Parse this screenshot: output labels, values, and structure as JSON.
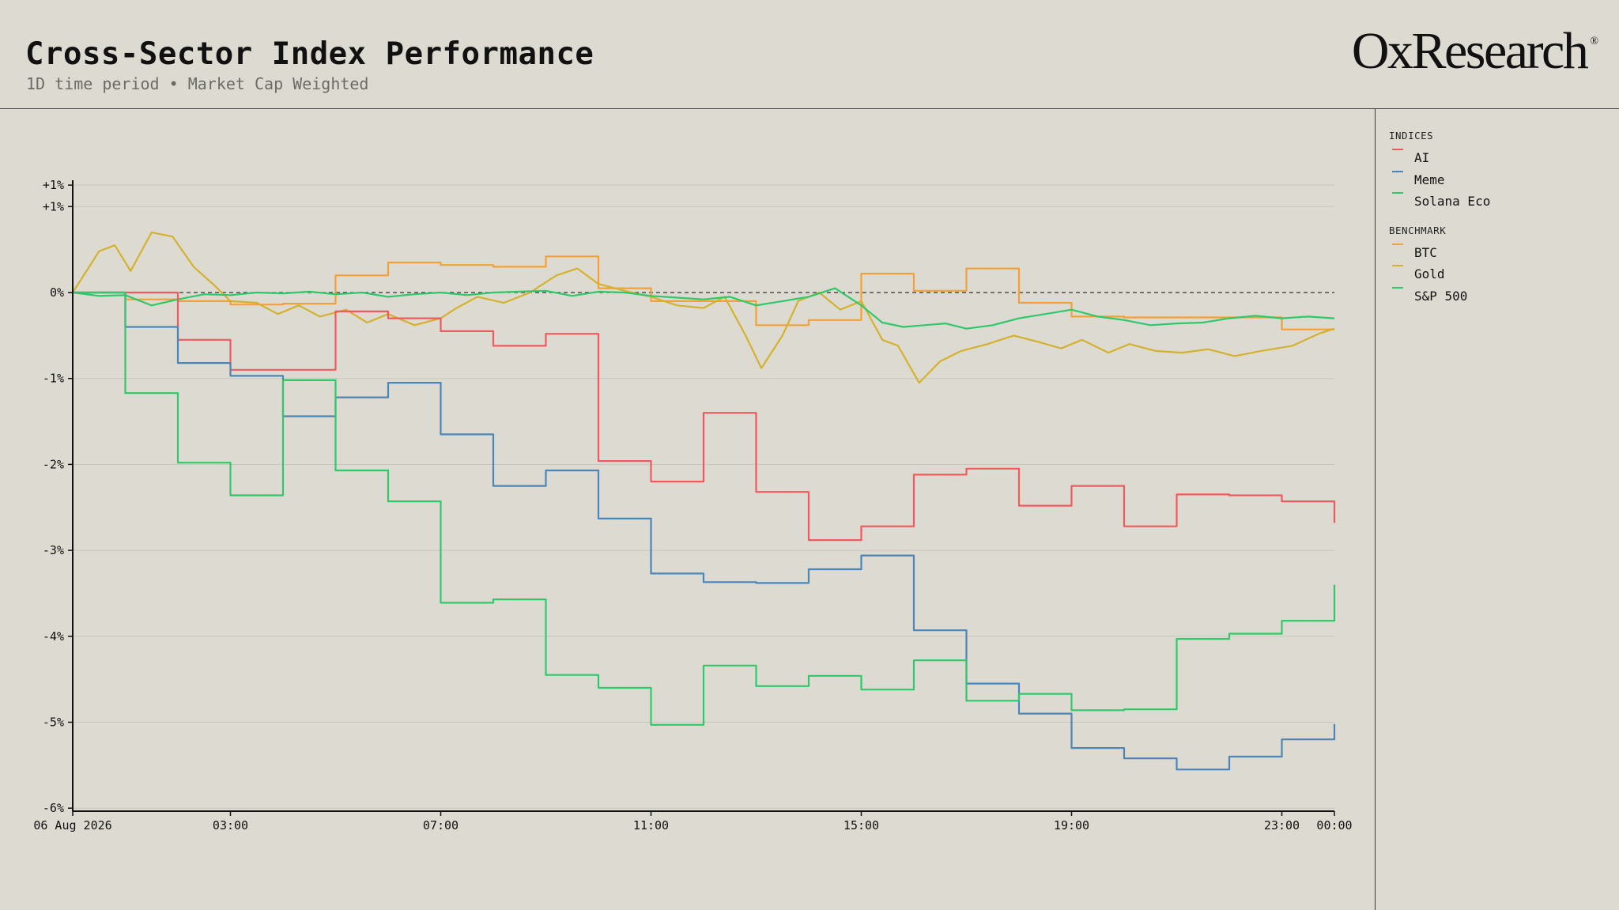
{
  "header": {
    "title": "Cross-Sector Index Performance",
    "subtitle": "1D time period • Market Cap Weighted",
    "logo": "OxResearch",
    "logo_mark": "®"
  },
  "legend": {
    "indices_heading": "INDICES",
    "benchmark_heading": "BENCHMARK",
    "indices": [
      {
        "name": "AI",
        "color": "#ef5a5f"
      },
      {
        "name": "Meme",
        "color": "#4a86b8"
      },
      {
        "name": "Solana Eco",
        "color": "#2fc86a"
      }
    ],
    "benchmarks": [
      {
        "name": "BTC",
        "color": "#f2a13a"
      },
      {
        "name": "Gold",
        "color": "#d4b22e"
      },
      {
        "name": "S&P 500",
        "color": "#2fc86a"
      }
    ]
  },
  "chart_data": {
    "type": "line",
    "title": "Cross-Sector Index Performance",
    "subtitle": "1D time period • Market Cap Weighted",
    "x_range_hours": [
      0,
      24
    ],
    "ylim": [
      -6,
      1.3
    ],
    "y_ticks": [
      {
        "value": 1.25,
        "label": "+1%"
      },
      {
        "value": 1.0,
        "label": "+1%"
      },
      {
        "value": 0,
        "label": "0%"
      },
      {
        "value": -1,
        "label": "-1%"
      },
      {
        "value": -2,
        "label": "-2%"
      },
      {
        "value": -3,
        "label": "-3%"
      },
      {
        "value": -4,
        "label": "-4%"
      },
      {
        "value": -5,
        "label": "-5%"
      },
      {
        "value": -6,
        "label": "-6%"
      }
    ],
    "x_ticks": [
      {
        "hour": 0,
        "label": "06 Aug 2026"
      },
      {
        "hour": 3,
        "label": "03:00"
      },
      {
        "hour": 7,
        "label": "07:00"
      },
      {
        "hour": 11,
        "label": "11:00"
      },
      {
        "hour": 15,
        "label": "15:00"
      },
      {
        "hour": 19,
        "label": "19:00"
      },
      {
        "hour": 23,
        "label": "23:00"
      },
      {
        "hour": 24,
        "label": "00:00"
      }
    ],
    "zero_line": true,
    "grid": true,
    "series": [
      {
        "name": "AI",
        "color": "#ef5a5f",
        "step": true,
        "points": [
          [
            0,
            0
          ],
          [
            1,
            0
          ],
          [
            2,
            -0.55
          ],
          [
            3,
            -0.9
          ],
          [
            4,
            -0.9
          ],
          [
            5,
            -0.22
          ],
          [
            6,
            -0.3
          ],
          [
            7,
            -0.45
          ],
          [
            8,
            -0.62
          ],
          [
            9,
            -0.48
          ],
          [
            10,
            -1.96
          ],
          [
            11,
            -2.2
          ],
          [
            12,
            -1.4
          ],
          [
            13,
            -2.32
          ],
          [
            14,
            -2.88
          ],
          [
            15,
            -2.72
          ],
          [
            16,
            -2.12
          ],
          [
            17,
            -2.05
          ],
          [
            18,
            -2.48
          ],
          [
            19,
            -2.25
          ],
          [
            20,
            -2.72
          ],
          [
            21,
            -2.35
          ],
          [
            22,
            -2.36
          ],
          [
            23,
            -2.43
          ],
          [
            24,
            -2.68
          ]
        ]
      },
      {
        "name": "Meme",
        "color": "#4a86b8",
        "step": true,
        "points": [
          [
            0,
            0
          ],
          [
            1,
            -0.4
          ],
          [
            2,
            -0.82
          ],
          [
            3,
            -0.97
          ],
          [
            4,
            -1.44
          ],
          [
            5,
            -1.22
          ],
          [
            6,
            -1.05
          ],
          [
            7,
            -1.65
          ],
          [
            8,
            -2.25
          ],
          [
            9,
            -2.07
          ],
          [
            10,
            -2.63
          ],
          [
            11,
            -3.27
          ],
          [
            12,
            -3.37
          ],
          [
            13,
            -3.38
          ],
          [
            14,
            -3.22
          ],
          [
            15,
            -3.06
          ],
          [
            16,
            -3.93
          ],
          [
            17,
            -4.55
          ],
          [
            18,
            -4.9
          ],
          [
            19,
            -5.3
          ],
          [
            20,
            -5.42
          ],
          [
            21,
            -5.55
          ],
          [
            22,
            -5.4
          ],
          [
            23,
            -5.2
          ],
          [
            24,
            -5.02
          ]
        ]
      },
      {
        "name": "Solana Eco",
        "color": "#2fc86a",
        "step": true,
        "points": [
          [
            0,
            0
          ],
          [
            1,
            -1.17
          ],
          [
            2,
            -1.98
          ],
          [
            3,
            -2.36
          ],
          [
            4,
            -1.02
          ],
          [
            5,
            -2.07
          ],
          [
            6,
            -2.43
          ],
          [
            7,
            -3.61
          ],
          [
            8,
            -3.57
          ],
          [
            9,
            -4.45
          ],
          [
            10,
            -4.6
          ],
          [
            11,
            -5.03
          ],
          [
            12,
            -4.34
          ],
          [
            13,
            -4.58
          ],
          [
            14,
            -4.46
          ],
          [
            15,
            -4.62
          ],
          [
            16,
            -4.28
          ],
          [
            17,
            -4.75
          ],
          [
            18,
            -4.67
          ],
          [
            19,
            -4.86
          ],
          [
            20,
            -4.85
          ],
          [
            21,
            -4.03
          ],
          [
            22,
            -3.97
          ],
          [
            23,
            -3.82
          ],
          [
            24,
            -3.4
          ]
        ]
      },
      {
        "name": "BTC",
        "color": "#f2a13a",
        "step": true,
        "points": [
          [
            0,
            0
          ],
          [
            1,
            -0.08
          ],
          [
            2,
            -0.1
          ],
          [
            3,
            -0.14
          ],
          [
            4,
            -0.13
          ],
          [
            5,
            0.2
          ],
          [
            6,
            0.35
          ],
          [
            7,
            0.32
          ],
          [
            8,
            0.3
          ],
          [
            9,
            0.42
          ],
          [
            10,
            0.05
          ],
          [
            11,
            -0.1
          ],
          [
            12,
            -0.1
          ],
          [
            13,
            -0.38
          ],
          [
            14,
            -0.32
          ],
          [
            15,
            0.22
          ],
          [
            16,
            0.02
          ],
          [
            17,
            0.28
          ],
          [
            18,
            -0.12
          ],
          [
            19,
            -0.28
          ],
          [
            20,
            -0.29
          ],
          [
            21,
            -0.29
          ],
          [
            22,
            -0.29
          ],
          [
            23,
            -0.43
          ],
          [
            24,
            -0.43
          ]
        ]
      },
      {
        "name": "Gold",
        "color": "#d4b22e",
        "step": false,
        "points": [
          [
            0,
            0
          ],
          [
            0.5,
            0.48
          ],
          [
            0.8,
            0.55
          ],
          [
            1.1,
            0.25
          ],
          [
            1.5,
            0.7
          ],
          [
            1.9,
            0.65
          ],
          [
            2.3,
            0.3
          ],
          [
            2.7,
            0.08
          ],
          [
            3,
            -0.1
          ],
          [
            3.5,
            -0.12
          ],
          [
            3.9,
            -0.25
          ],
          [
            4.3,
            -0.15
          ],
          [
            4.7,
            -0.28
          ],
          [
            5.2,
            -0.2
          ],
          [
            5.6,
            -0.35
          ],
          [
            6,
            -0.25
          ],
          [
            6.5,
            -0.38
          ],
          [
            7,
            -0.3
          ],
          [
            7.3,
            -0.18
          ],
          [
            7.7,
            -0.05
          ],
          [
            8.2,
            -0.12
          ],
          [
            8.7,
            0.0
          ],
          [
            9.2,
            0.2
          ],
          [
            9.6,
            0.28
          ],
          [
            10,
            0.1
          ],
          [
            10.5,
            0.02
          ],
          [
            11,
            -0.05
          ],
          [
            11.5,
            -0.15
          ],
          [
            12,
            -0.18
          ],
          [
            12.4,
            -0.05
          ],
          [
            12.8,
            -0.5
          ],
          [
            13.1,
            -0.88
          ],
          [
            13.5,
            -0.5
          ],
          [
            13.8,
            -0.1
          ],
          [
            14.2,
            0.0
          ],
          [
            14.6,
            -0.2
          ],
          [
            15,
            -0.1
          ],
          [
            15.4,
            -0.55
          ],
          [
            15.7,
            -0.62
          ],
          [
            16.1,
            -1.05
          ],
          [
            16.5,
            -0.8
          ],
          [
            16.9,
            -0.68
          ],
          [
            17.4,
            -0.6
          ],
          [
            17.9,
            -0.5
          ],
          [
            18.4,
            -0.58
          ],
          [
            18.8,
            -0.65
          ],
          [
            19.2,
            -0.55
          ],
          [
            19.7,
            -0.7
          ],
          [
            20.1,
            -0.6
          ],
          [
            20.6,
            -0.68
          ],
          [
            21.1,
            -0.7
          ],
          [
            21.6,
            -0.66
          ],
          [
            22.1,
            -0.74
          ],
          [
            22.6,
            -0.68
          ],
          [
            23.2,
            -0.62
          ],
          [
            23.7,
            -0.48
          ],
          [
            24,
            -0.42
          ]
        ]
      },
      {
        "name": "S&P 500",
        "color": "#2fc86a",
        "step": false,
        "points": [
          [
            0,
            0
          ],
          [
            0.5,
            -0.04
          ],
          [
            1,
            -0.03
          ],
          [
            1.5,
            -0.15
          ],
          [
            2,
            -0.08
          ],
          [
            2.5,
            -0.02
          ],
          [
            3,
            -0.03
          ],
          [
            3.5,
            0.0
          ],
          [
            4,
            -0.01
          ],
          [
            4.5,
            0.01
          ],
          [
            5,
            -0.02
          ],
          [
            5.5,
            0.0
          ],
          [
            6,
            -0.05
          ],
          [
            6.5,
            -0.02
          ],
          [
            7,
            0.0
          ],
          [
            7.5,
            -0.03
          ],
          [
            8,
            0.0
          ],
          [
            8.5,
            0.01
          ],
          [
            9,
            0.02
          ],
          [
            9.5,
            -0.04
          ],
          [
            10,
            0.01
          ],
          [
            10.5,
            0.0
          ],
          [
            11,
            -0.04
          ],
          [
            11.5,
            -0.06
          ],
          [
            12,
            -0.08
          ],
          [
            12.5,
            -0.05
          ],
          [
            13,
            -0.15
          ],
          [
            13.5,
            -0.1
          ],
          [
            14,
            -0.05
          ],
          [
            14.5,
            0.05
          ],
          [
            15,
            -0.15
          ],
          [
            15.4,
            -0.35
          ],
          [
            15.8,
            -0.4
          ],
          [
            16.2,
            -0.38
          ],
          [
            16.6,
            -0.36
          ],
          [
            17,
            -0.42
          ],
          [
            17.5,
            -0.38
          ],
          [
            18,
            -0.3
          ],
          [
            18.5,
            -0.25
          ],
          [
            19,
            -0.2
          ],
          [
            19.5,
            -0.28
          ],
          [
            20,
            -0.32
          ],
          [
            20.5,
            -0.38
          ],
          [
            21,
            -0.36
          ],
          [
            21.5,
            -0.35
          ],
          [
            22,
            -0.3
          ],
          [
            22.5,
            -0.27
          ],
          [
            23,
            -0.3
          ],
          [
            23.5,
            -0.28
          ],
          [
            24,
            -0.3
          ]
        ]
      }
    ]
  }
}
